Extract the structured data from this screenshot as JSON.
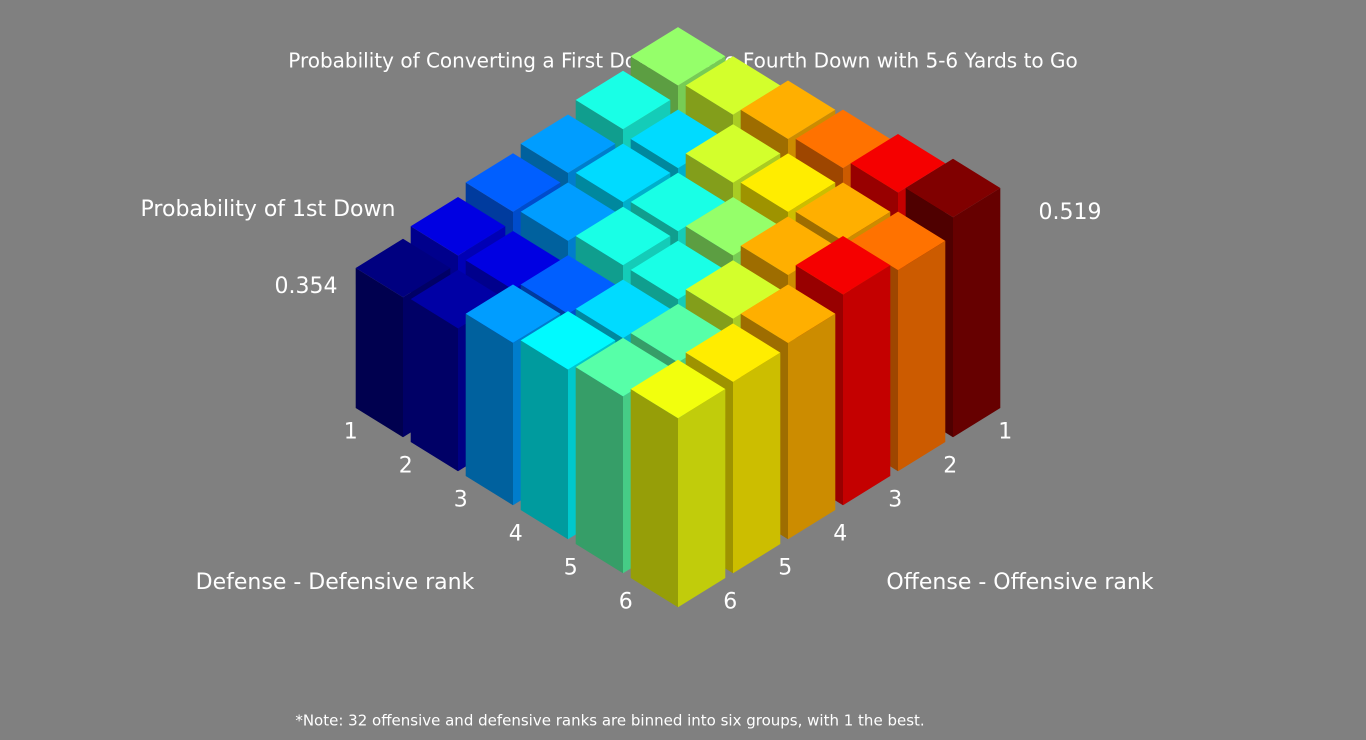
{
  "chart_data": {
    "type": "bar3d",
    "title": "Probability of Converting a First Down on the Fourth Down with 5-6 Yards to Go",
    "note": "*Note: 32 offensive and defensive ranks are binned into six groups, with 1 the best.",
    "x_label": "Defense - Defensive rank",
    "y_label": "Offense - Offensive rank",
    "z_label": "Probability of 1st Down",
    "x_categories": [
      "1",
      "2",
      "3",
      "4",
      "5",
      "6"
    ],
    "y_categories": [
      "1",
      "2",
      "3",
      "4",
      "5",
      "6"
    ],
    "values": [
      [
        0.44,
        0.42,
        0.4,
        0.39,
        0.37,
        0.354
      ],
      [
        0.45,
        0.41,
        0.41,
        0.4,
        0.37,
        0.36
      ],
      [
        0.47,
        0.45,
        0.42,
        0.42,
        0.39,
        0.4
      ],
      [
        0.48,
        0.46,
        0.44,
        0.42,
        0.41,
        0.415
      ],
      [
        0.5,
        0.47,
        0.47,
        0.45,
        0.43,
        0.43
      ],
      [
        0.519,
        0.48,
        0.5,
        0.47,
        0.46,
        0.455
      ]
    ],
    "zlim": [
      0.354,
      0.519
    ],
    "zticks": [
      0.354,
      0.519
    ],
    "colormap": "jet"
  }
}
